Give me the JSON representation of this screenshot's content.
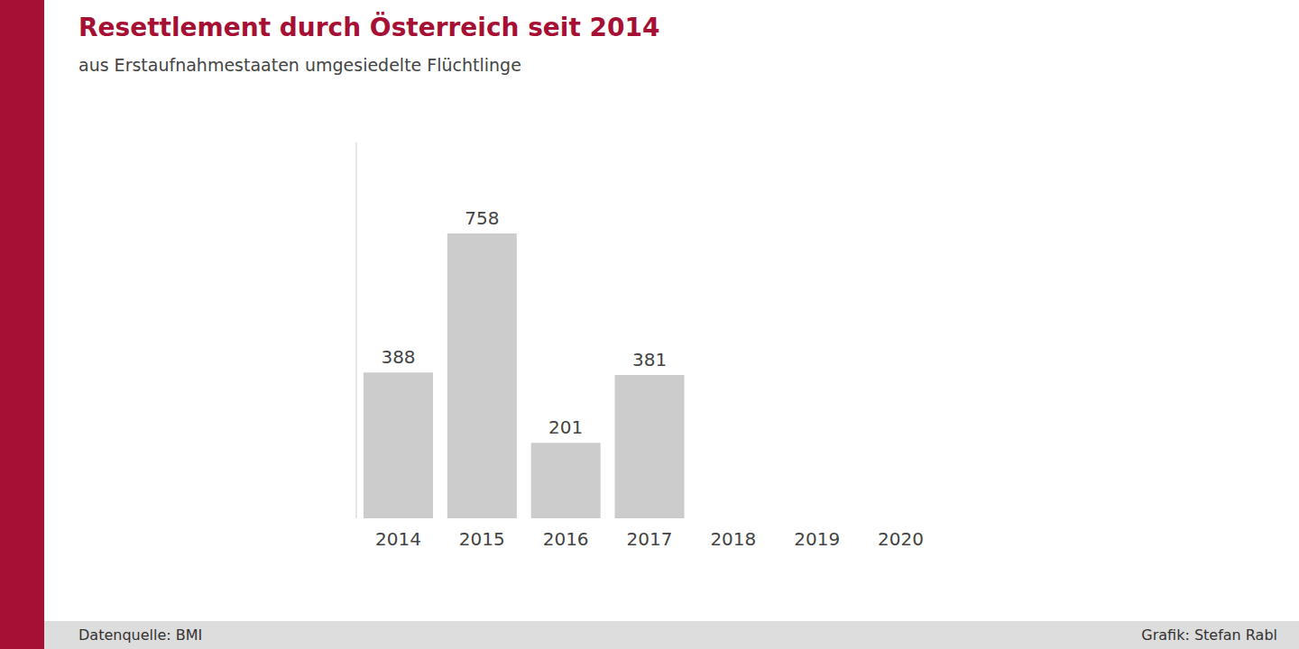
{
  "chart_data": {
    "type": "bar",
    "title": "Resettlement durch Österreich seit 2014",
    "subtitle": "aus Erstaufnahmestaaten umgesiedelte Flüchtlinge",
    "categories": [
      "2014",
      "2015",
      "2016",
      "2017",
      "2018",
      "2019",
      "2020"
    ],
    "values": [
      388,
      758,
      201,
      381,
      0,
      0,
      0
    ],
    "color": "#cccccc",
    "ylim": [
      0,
      1000
    ],
    "yticks": [],
    "grid": false,
    "data_labels": true,
    "tick_labels": "x",
    "annotations": [
      "Datenquelle: BMI",
      "Grafik: Stefan Rabl"
    ]
  }
}
